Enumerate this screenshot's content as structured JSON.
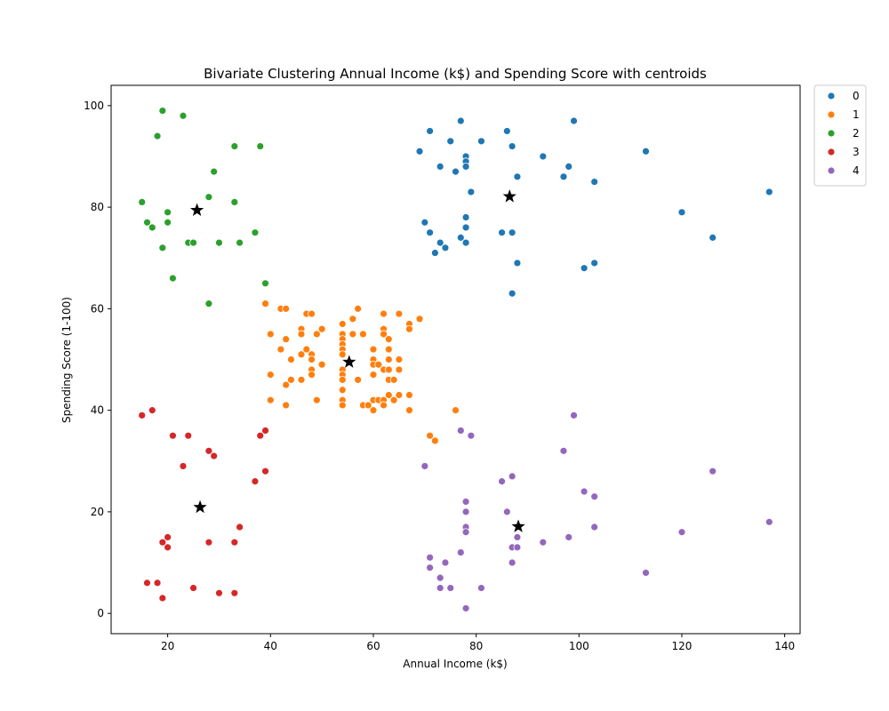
{
  "chart_data": {
    "type": "scatter",
    "title": "Bivariate Clustering Annual Income (k$) and Spending Score with centroids",
    "xlabel": "Annual Income (k$)",
    "ylabel": "Spending Score (1-100)",
    "xlim": [
      9,
      143
    ],
    "ylim": [
      -4,
      104
    ],
    "x_ticks": [
      20,
      40,
      60,
      80,
      100,
      120,
      140
    ],
    "y_ticks": [
      0,
      20,
      40,
      60,
      80,
      100
    ],
    "grid": false,
    "legend_position": "outside-top-right",
    "series": [
      {
        "name": "0",
        "color": "#1f77b4",
        "points": [
          [
            69,
            91
          ],
          [
            71,
            95
          ],
          [
            73,
            88
          ],
          [
            75,
            93
          ],
          [
            77,
            97
          ],
          [
            76,
            87
          ],
          [
            78,
            90
          ],
          [
            78,
            89
          ],
          [
            78,
            88
          ],
          [
            79,
            83
          ],
          [
            81,
            93
          ],
          [
            86,
            95
          ],
          [
            87,
            92
          ],
          [
            88,
            86
          ],
          [
            93,
            90
          ],
          [
            97,
            86
          ],
          [
            98,
            88
          ],
          [
            99,
            97
          ],
          [
            103,
            85
          ],
          [
            113,
            91
          ],
          [
            120,
            79
          ],
          [
            126,
            74
          ],
          [
            137,
            83
          ],
          [
            70,
            77
          ],
          [
            71,
            75
          ],
          [
            72,
            71
          ],
          [
            73,
            73
          ],
          [
            74,
            72
          ],
          [
            77,
            74
          ],
          [
            78,
            78
          ],
          [
            78,
            76
          ],
          [
            78,
            73
          ],
          [
            85,
            75
          ],
          [
            87,
            75
          ],
          [
            88,
            69
          ],
          [
            87,
            63
          ],
          [
            101,
            68
          ],
          [
            103,
            69
          ]
        ]
      },
      {
        "name": "1",
        "color": "#ff7f0e",
        "points": [
          [
            39,
            61
          ],
          [
            40,
            55
          ],
          [
            40,
            47
          ],
          [
            40,
            42
          ],
          [
            42,
            60
          ],
          [
            42,
            52
          ],
          [
            43,
            60
          ],
          [
            43,
            54
          ],
          [
            43,
            45
          ],
          [
            43,
            41
          ],
          [
            44,
            50
          ],
          [
            44,
            46
          ],
          [
            46,
            56
          ],
          [
            46,
            55
          ],
          [
            46,
            51
          ],
          [
            46,
            46
          ],
          [
            47,
            59
          ],
          [
            47,
            52
          ],
          [
            48,
            59
          ],
          [
            48,
            51
          ],
          [
            48,
            50
          ],
          [
            48,
            48
          ],
          [
            48,
            47
          ],
          [
            49,
            55
          ],
          [
            49,
            42
          ],
          [
            50,
            56
          ],
          [
            50,
            49
          ],
          [
            54,
            57
          ],
          [
            54,
            55
          ],
          [
            54,
            54
          ],
          [
            54,
            53
          ],
          [
            54,
            52
          ],
          [
            54,
            51
          ],
          [
            54,
            48
          ],
          [
            54,
            47
          ],
          [
            54,
            46
          ],
          [
            54,
            44
          ],
          [
            54,
            42
          ],
          [
            54,
            41
          ],
          [
            56,
            58
          ],
          [
            56,
            55
          ],
          [
            57,
            60
          ],
          [
            57,
            46
          ],
          [
            58,
            55
          ],
          [
            58,
            41
          ],
          [
            59,
            41
          ],
          [
            60,
            52
          ],
          [
            60,
            50
          ],
          [
            60,
            49
          ],
          [
            60,
            47
          ],
          [
            60,
            42
          ],
          [
            60,
            40
          ],
          [
            61,
            49
          ],
          [
            61,
            42
          ],
          [
            62,
            59
          ],
          [
            62,
            56
          ],
          [
            62,
            55
          ],
          [
            62,
            48
          ],
          [
            62,
            42
          ],
          [
            62,
            41
          ],
          [
            63,
            54
          ],
          [
            63,
            52
          ],
          [
            63,
            50
          ],
          [
            63,
            48
          ],
          [
            63,
            46
          ],
          [
            63,
            43
          ],
          [
            64,
            46
          ],
          [
            64,
            42
          ],
          [
            65,
            59
          ],
          [
            65,
            50
          ],
          [
            65,
            48
          ],
          [
            65,
            43
          ],
          [
            67,
            57
          ],
          [
            67,
            56
          ],
          [
            67,
            43
          ],
          [
            67,
            40
          ],
          [
            69,
            58
          ],
          [
            71,
            35
          ],
          [
            72,
            34
          ],
          [
            76,
            40
          ]
        ]
      },
      {
        "name": "2",
        "color": "#2ca02c",
        "points": [
          [
            15,
            81
          ],
          [
            16,
            77
          ],
          [
            17,
            76
          ],
          [
            18,
            94
          ],
          [
            19,
            72
          ],
          [
            19,
            99
          ],
          [
            20,
            79
          ],
          [
            20,
            77
          ],
          [
            21,
            66
          ],
          [
            23,
            98
          ],
          [
            24,
            73
          ],
          [
            25,
            73
          ],
          [
            28,
            82
          ],
          [
            28,
            61
          ],
          [
            29,
            87
          ],
          [
            30,
            73
          ],
          [
            33,
            92
          ],
          [
            33,
            81
          ],
          [
            34,
            73
          ],
          [
            37,
            75
          ],
          [
            38,
            92
          ],
          [
            39,
            65
          ]
        ]
      },
      {
        "name": "3",
        "color": "#d62728",
        "points": [
          [
            15,
            39
          ],
          [
            16,
            6
          ],
          [
            17,
            40
          ],
          [
            18,
            6
          ],
          [
            19,
            3
          ],
          [
            19,
            14
          ],
          [
            20,
            15
          ],
          [
            20,
            13
          ],
          [
            21,
            35
          ],
          [
            23,
            29
          ],
          [
            24,
            35
          ],
          [
            25,
            5
          ],
          [
            28,
            32
          ],
          [
            28,
            14
          ],
          [
            29,
            31
          ],
          [
            30,
            4
          ],
          [
            33,
            14
          ],
          [
            33,
            4
          ],
          [
            34,
            17
          ],
          [
            37,
            26
          ],
          [
            38,
            35
          ],
          [
            39,
            36
          ],
          [
            39,
            28
          ]
        ]
      },
      {
        "name": "4",
        "color": "#9467bd",
        "points": [
          [
            70,
            29
          ],
          [
            71,
            11
          ],
          [
            71,
            9
          ],
          [
            73,
            7
          ],
          [
            73,
            5
          ],
          [
            74,
            10
          ],
          [
            75,
            5
          ],
          [
            77,
            36
          ],
          [
            77,
            12
          ],
          [
            78,
            22
          ],
          [
            78,
            20
          ],
          [
            78,
            17
          ],
          [
            78,
            16
          ],
          [
            78,
            1
          ],
          [
            79,
            35
          ],
          [
            81,
            5
          ],
          [
            85,
            26
          ],
          [
            86,
            20
          ],
          [
            87,
            27
          ],
          [
            87,
            13
          ],
          [
            87,
            10
          ],
          [
            88,
            15
          ],
          [
            88,
            13
          ],
          [
            93,
            14
          ],
          [
            97,
            32
          ],
          [
            98,
            15
          ],
          [
            99,
            39
          ],
          [
            101,
            24
          ],
          [
            103,
            23
          ],
          [
            103,
            17
          ],
          [
            113,
            8
          ],
          [
            120,
            16
          ],
          [
            126,
            28
          ],
          [
            137,
            18
          ]
        ]
      }
    ],
    "centroids": {
      "name": "centroids",
      "color": "#000000",
      "points": [
        [
          86.5,
          82.1
        ],
        [
          55.3,
          49.5
        ],
        [
          25.7,
          79.4
        ],
        [
          26.3,
          20.9
        ],
        [
          88.2,
          17.1
        ]
      ]
    }
  }
}
